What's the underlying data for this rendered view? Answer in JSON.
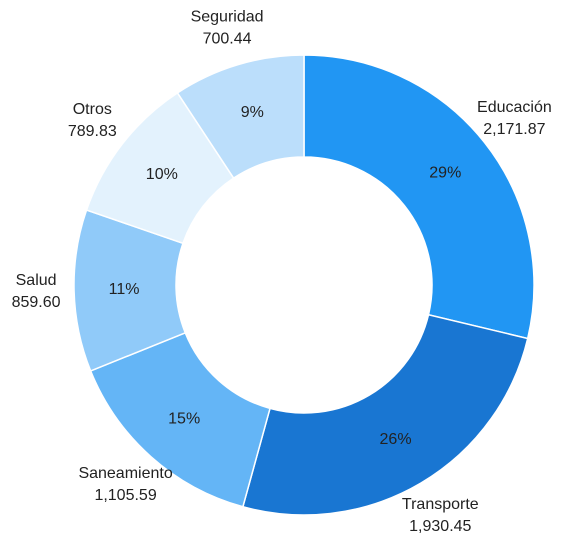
{
  "chart_data": {
    "type": "donut",
    "categories": [
      "Educación",
      "Transporte",
      "Saneamiento",
      "Salud",
      "Otros",
      "Seguridad"
    ],
    "values": [
      2171.87,
      1930.45,
      1105.59,
      859.6,
      789.83,
      700.44
    ],
    "value_labels": [
      "2,171.87",
      "1,930.45",
      "1,105.59",
      "859.60",
      "789.83",
      "700.44"
    ],
    "percent_labels": [
      "29%",
      "26%",
      "15%",
      "11%",
      "10%",
      "9%"
    ],
    "colors": [
      "#2196f3",
      "#1976d2",
      "#64b5f6",
      "#90caf9",
      "#e3f2fd",
      "#bbdefb"
    ]
  }
}
